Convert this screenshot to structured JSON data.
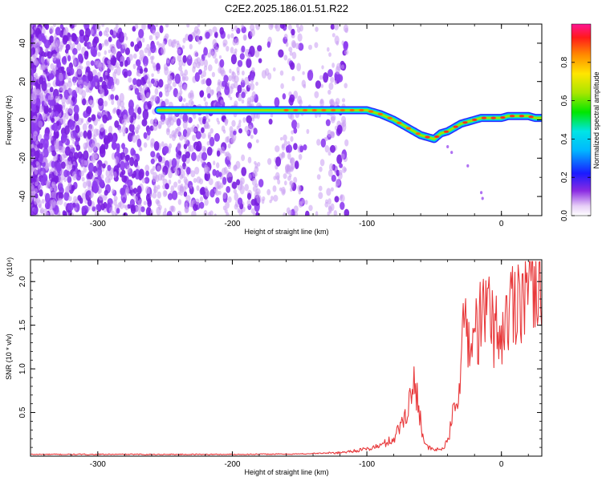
{
  "chart_data": [
    {
      "type": "heatmap",
      "title": "C2E2.2025.186.01.51.R22",
      "xlabel": "Height of straight line (km)",
      "ylabel": "Frequency (Hz)",
      "xlim": [
        -350,
        30
      ],
      "ylim": [
        -50,
        50
      ],
      "x_ticks": [
        "-300",
        "-200",
        "-100",
        "0"
      ],
      "y_ticks": [
        "40",
        "20",
        "0",
        "-20",
        "-40"
      ],
      "colorbar": {
        "label": "Normalized spectral amplitude",
        "range": [
          0,
          1
        ],
        "ticks": [
          "0.0",
          "0.2",
          "0.4",
          "0.6",
          "0.8"
        ]
      },
      "ridge": {
        "x": [
          -255,
          -240,
          -220,
          -200,
          -180,
          -160,
          -140,
          -120,
          -100,
          -90,
          -80,
          -70,
          -60,
          -50,
          -45,
          -40,
          -35,
          -30,
          -25,
          -20,
          -15,
          -10,
          -5,
          0,
          5,
          10,
          15,
          20,
          25,
          30
        ],
        "freq_hz": [
          5,
          5,
          5,
          5,
          5,
          5,
          5,
          5,
          5,
          3,
          0,
          -4,
          -8,
          -10,
          -7,
          -6,
          -4,
          -2,
          -1,
          0,
          1,
          1,
          1,
          1,
          2,
          2,
          2,
          2,
          1,
          1
        ]
      }
    },
    {
      "type": "line",
      "xlabel": "Height of straight line (km)",
      "ylabel": "SNR (10 * v/v)",
      "y_multiplier": "(x10⁴)",
      "xlim": [
        -350,
        30
      ],
      "ylim": [
        0,
        2.25
      ],
      "x_ticks": [
        "-300",
        "-200",
        "-100",
        "0"
      ],
      "y_ticks": [
        "0.5",
        "1.0",
        "1.5",
        "2.0"
      ],
      "color": "#e8393b",
      "series": [
        {
          "x": [
            -350,
            -300,
            -250,
            -200,
            -150,
            -120,
            -100,
            -90,
            -80,
            -75,
            -70,
            -65,
            -62,
            -60,
            -57,
            -55,
            -50,
            -45,
            -40,
            -35,
            -30,
            -27,
            -25,
            -22,
            -20,
            -15,
            -10,
            -5,
            0,
            5,
            10,
            15,
            20,
            25,
            30
          ],
          "y": [
            0.02,
            0.02,
            0.02,
            0.02,
            0.025,
            0.04,
            0.08,
            0.12,
            0.2,
            0.35,
            0.55,
            0.8,
            0.7,
            0.4,
            0.15,
            0.1,
            0.07,
            0.08,
            0.15,
            0.55,
            1.0,
            1.65,
            1.4,
            1.2,
            1.45,
            1.55,
            1.7,
            1.45,
            1.4,
            1.6,
            1.85,
            1.9,
            2.0,
            2.1,
            2.15
          ]
        }
      ]
    }
  ]
}
